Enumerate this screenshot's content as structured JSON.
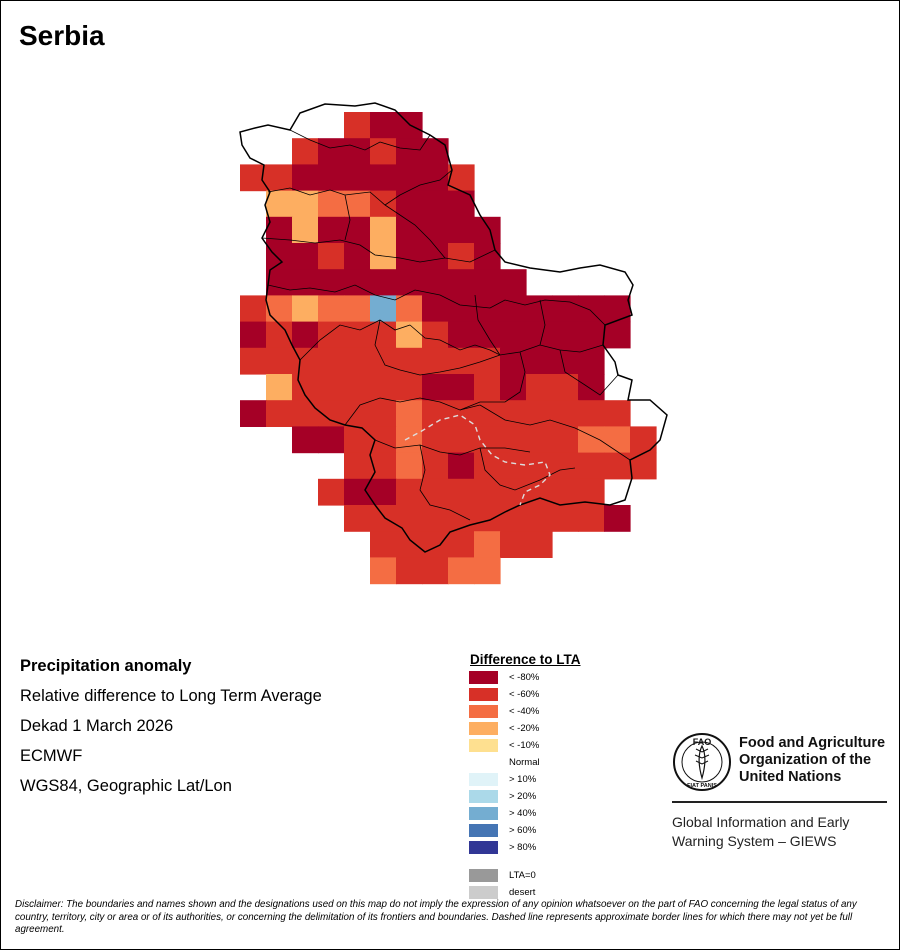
{
  "title": "Serbia",
  "info": {
    "heading": "Precipitation anomaly",
    "line1": "Relative difference to Long Term Average",
    "line2": "Dekad 1 March 2026",
    "line3": "ECMWF",
    "line4": "WGS84, Geographic Lat/Lon"
  },
  "legend": {
    "title": "Difference to LTA",
    "items": [
      {
        "label": "< -80%",
        "color": "#a50026"
      },
      {
        "label": "< -60%",
        "color": "#d73027"
      },
      {
        "label": "< -40%",
        "color": "#f46d43"
      },
      {
        "label": "< -20%",
        "color": "#fdae61"
      },
      {
        "label": "< -10%",
        "color": "#fee090"
      },
      {
        "label": "Normal",
        "color": "#ffffff"
      },
      {
        "label": "> 10%",
        "color": "#e0f3f8"
      },
      {
        "label": "> 20%",
        "color": "#abd9e9"
      },
      {
        "label": "> 40%",
        "color": "#74add1"
      },
      {
        "label": "> 60%",
        "color": "#4575b4"
      },
      {
        "label": "> 80%",
        "color": "#313695"
      },
      {
        "label": "LTA=0",
        "color": "#999999"
      },
      {
        "label": "desert",
        "color": "#cccccc"
      }
    ]
  },
  "fao": {
    "name_line1": "Food and Agriculture",
    "name_line2": "Organization of the",
    "name_line3": "United Nations",
    "logo_text": "FAO",
    "logo_motto": "FIAT PANIS",
    "giews_line1": "Global Information and Early",
    "giews_line2": "Warning System – GIEWS"
  },
  "disclaimer": "Disclaimer: The boundaries and names shown and the designations used on this map do not imply the expression of any opinion whatsoever on the part of FAO concerning the legal status of any country, territory, city or area or of its authorities, or concerning the delimitation of its frontiers and boundaries. Dashed line represents approximate border lines for which there may not yet be full agreement.",
  "map_data": {
    "cells": [
      [
        0,
        4,
        1
      ],
      [
        0,
        5,
        0
      ],
      [
        0,
        6,
        0
      ],
      [
        1,
        2,
        1
      ],
      [
        1,
        3,
        0
      ],
      [
        1,
        4,
        0
      ],
      [
        1,
        5,
        1
      ],
      [
        1,
        6,
        0
      ],
      [
        1,
        7,
        0
      ],
      [
        2,
        0,
        1
      ],
      [
        2,
        1,
        1
      ],
      [
        2,
        2,
        0
      ],
      [
        2,
        3,
        0
      ],
      [
        2,
        4,
        0
      ],
      [
        2,
        5,
        0
      ],
      [
        2,
        6,
        0
      ],
      [
        2,
        7,
        0
      ],
      [
        2,
        8,
        1
      ],
      [
        3,
        1,
        3
      ],
      [
        3,
        2,
        3
      ],
      [
        3,
        3,
        2
      ],
      [
        3,
        4,
        2
      ],
      [
        3,
        5,
        1
      ],
      [
        3,
        6,
        0
      ],
      [
        3,
        7,
        0
      ],
      [
        3,
        8,
        0
      ],
      [
        4,
        1,
        0
      ],
      [
        4,
        2,
        3
      ],
      [
        4,
        3,
        0
      ],
      [
        4,
        4,
        0
      ],
      [
        4,
        5,
        3
      ],
      [
        4,
        6,
        0
      ],
      [
        4,
        7,
        0
      ],
      [
        4,
        8,
        0
      ],
      [
        4,
        9,
        0
      ],
      [
        5,
        1,
        0
      ],
      [
        5,
        2,
        0
      ],
      [
        5,
        3,
        1
      ],
      [
        5,
        4,
        0
      ],
      [
        5,
        5,
        3
      ],
      [
        5,
        6,
        0
      ],
      [
        5,
        7,
        0
      ],
      [
        5,
        8,
        1
      ],
      [
        5,
        9,
        0
      ],
      [
        6,
        1,
        0
      ],
      [
        6,
        2,
        0
      ],
      [
        6,
        3,
        0
      ],
      [
        6,
        4,
        0
      ],
      [
        6,
        5,
        0
      ],
      [
        6,
        6,
        0
      ],
      [
        6,
        7,
        0
      ],
      [
        6,
        8,
        0
      ],
      [
        6,
        9,
        0
      ],
      [
        6,
        10,
        0
      ],
      [
        7,
        0,
        1
      ],
      [
        7,
        1,
        2
      ],
      [
        7,
        2,
        3
      ],
      [
        7,
        3,
        2
      ],
      [
        7,
        4,
        2
      ],
      [
        7,
        5,
        8
      ],
      [
        7,
        6,
        2
      ],
      [
        7,
        7,
        0
      ],
      [
        7,
        8,
        0
      ],
      [
        7,
        9,
        0
      ],
      [
        7,
        10,
        0
      ],
      [
        7,
        11,
        0
      ],
      [
        7,
        12,
        0
      ],
      [
        7,
        13,
        0
      ],
      [
        7,
        14,
        0
      ],
      [
        8,
        0,
        0
      ],
      [
        8,
        1,
        1
      ],
      [
        8,
        2,
        0
      ],
      [
        8,
        3,
        1
      ],
      [
        8,
        4,
        1
      ],
      [
        8,
        5,
        1
      ],
      [
        8,
        6,
        3
      ],
      [
        8,
        7,
        1
      ],
      [
        8,
        8,
        0
      ],
      [
        8,
        9,
        0
      ],
      [
        8,
        10,
        0
      ],
      [
        8,
        11,
        0
      ],
      [
        8,
        12,
        0
      ],
      [
        8,
        13,
        0
      ],
      [
        8,
        14,
        0
      ],
      [
        9,
        0,
        1
      ],
      [
        9,
        1,
        1
      ],
      [
        9,
        2,
        1
      ],
      [
        9,
        3,
        1
      ],
      [
        9,
        4,
        1
      ],
      [
        9,
        5,
        1
      ],
      [
        9,
        6,
        1
      ],
      [
        9,
        7,
        1
      ],
      [
        9,
        8,
        1
      ],
      [
        9,
        9,
        1
      ],
      [
        9,
        10,
        0
      ],
      [
        9,
        11,
        0
      ],
      [
        9,
        12,
        0
      ],
      [
        9,
        13,
        0
      ],
      [
        10,
        1,
        3
      ],
      [
        10,
        2,
        1
      ],
      [
        10,
        3,
        1
      ],
      [
        10,
        4,
        1
      ],
      [
        10,
        5,
        1
      ],
      [
        10,
        6,
        1
      ],
      [
        10,
        7,
        0
      ],
      [
        10,
        8,
        0
      ],
      [
        10,
        9,
        1
      ],
      [
        10,
        10,
        0
      ],
      [
        10,
        11,
        1
      ],
      [
        10,
        12,
        1
      ],
      [
        10,
        13,
        0
      ],
      [
        11,
        0,
        0
      ],
      [
        11,
        1,
        1
      ],
      [
        11,
        2,
        1
      ],
      [
        11,
        3,
        1
      ],
      [
        11,
        4,
        1
      ],
      [
        11,
        5,
        1
      ],
      [
        11,
        6,
        2
      ],
      [
        11,
        7,
        1
      ],
      [
        11,
        8,
        1
      ],
      [
        11,
        9,
        1
      ],
      [
        11,
        10,
        1
      ],
      [
        11,
        11,
        1
      ],
      [
        11,
        12,
        1
      ],
      [
        11,
        13,
        1
      ],
      [
        11,
        14,
        1
      ],
      [
        12,
        2,
        0
      ],
      [
        12,
        3,
        0
      ],
      [
        12,
        4,
        1
      ],
      [
        12,
        5,
        1
      ],
      [
        12,
        6,
        2
      ],
      [
        12,
        7,
        1
      ],
      [
        12,
        8,
        1
      ],
      [
        12,
        9,
        1
      ],
      [
        12,
        10,
        1
      ],
      [
        12,
        11,
        1
      ],
      [
        12,
        12,
        1
      ],
      [
        12,
        13,
        2
      ],
      [
        12,
        14,
        2
      ],
      [
        12,
        15,
        1
      ],
      [
        13,
        4,
        1
      ],
      [
        13,
        5,
        1
      ],
      [
        13,
        6,
        2
      ],
      [
        13,
        7,
        1
      ],
      [
        13,
        8,
        0
      ],
      [
        13,
        9,
        1
      ],
      [
        13,
        10,
        1
      ],
      [
        13,
        11,
        1
      ],
      [
        13,
        12,
        1
      ],
      [
        13,
        13,
        1
      ],
      [
        13,
        14,
        1
      ],
      [
        13,
        15,
        1
      ],
      [
        14,
        3,
        1
      ],
      [
        14,
        4,
        0
      ],
      [
        14,
        5,
        0
      ],
      [
        14,
        6,
        1
      ],
      [
        14,
        7,
        1
      ],
      [
        14,
        8,
        1
      ],
      [
        14,
        9,
        1
      ],
      [
        14,
        10,
        1
      ],
      [
        14,
        11,
        1
      ],
      [
        14,
        12,
        1
      ],
      [
        14,
        13,
        1
      ],
      [
        15,
        4,
        1
      ],
      [
        15,
        5,
        1
      ],
      [
        15,
        6,
        1
      ],
      [
        15,
        7,
        1
      ],
      [
        15,
        8,
        1
      ],
      [
        15,
        9,
        1
      ],
      [
        15,
        10,
        1
      ],
      [
        15,
        11,
        1
      ],
      [
        15,
        12,
        1
      ],
      [
        15,
        13,
        1
      ],
      [
        15,
        14,
        0
      ],
      [
        16,
        5,
        1
      ],
      [
        16,
        6,
        1
      ],
      [
        16,
        7,
        1
      ],
      [
        16,
        8,
        1
      ],
      [
        16,
        9,
        2
      ],
      [
        16,
        10,
        1
      ],
      [
        16,
        11,
        1
      ],
      [
        17,
        5,
        2
      ],
      [
        17,
        6,
        1
      ],
      [
        17,
        7,
        1
      ],
      [
        17,
        8,
        2
      ],
      [
        17,
        9,
        2
      ]
    ]
  }
}
